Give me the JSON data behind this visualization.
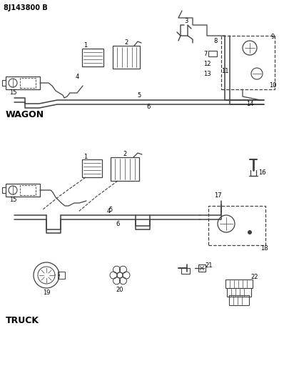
{
  "title": "8J143800 B",
  "wagon_label": "WAGON",
  "truck_label": "TRUCK",
  "bg_color": "#ffffff",
  "line_color": "#404040",
  "text_color": "#000000",
  "fig_width": 3.98,
  "fig_height": 5.33,
  "dpi": 100
}
